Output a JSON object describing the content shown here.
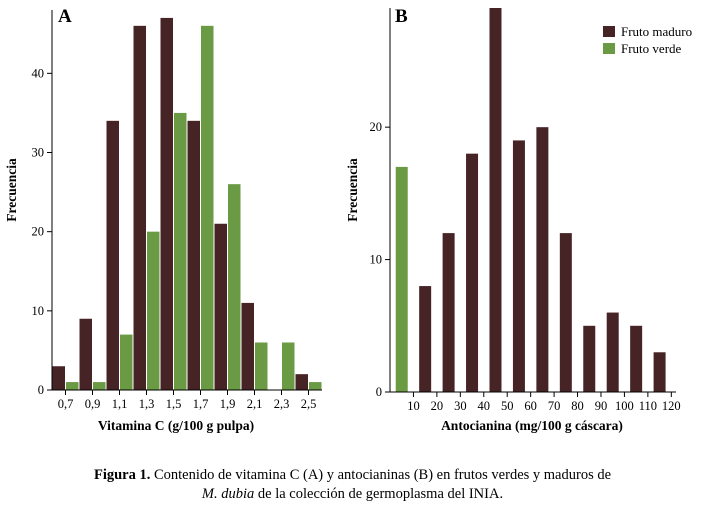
{
  "colors": {
    "mature": "#462426",
    "green": "#6b9a45",
    "axis": "#000000"
  },
  "chart_data": [
    {
      "id": "A",
      "type": "bar",
      "panel_label": "A",
      "title": "",
      "xlabel": "Vitamina C (g/100 g pulpa)",
      "ylabel": "Frecuencia",
      "categories": [
        "0,7",
        "0,9",
        "1,1",
        "1,3",
        "1,5",
        "1,7",
        "1,9",
        "2,1",
        "2,3",
        "2,5"
      ],
      "ylim": [
        0,
        48
      ],
      "yticks": [
        0,
        10,
        20,
        30,
        40
      ],
      "grid": false,
      "series": [
        {
          "name": "Fruto maduro",
          "color": "#462426",
          "values": [
            3,
            9,
            34,
            46,
            47,
            34,
            21,
            11,
            0,
            2
          ]
        },
        {
          "name": "Fruto verde",
          "color": "#6b9a45",
          "values": [
            1,
            1,
            7,
            20,
            35,
            46,
            26,
            6,
            6,
            1
          ]
        }
      ]
    },
    {
      "id": "B",
      "type": "bar",
      "panel_label": "B",
      "title": "",
      "xlabel": "Antocianina (mg/100 g cáscara)",
      "ylabel": "Frecuencia",
      "x": [
        "10",
        "20",
        "30",
        "40",
        "50",
        "60",
        "70",
        "80",
        "90",
        "100",
        "110",
        "120"
      ],
      "categories": [
        "10",
        "20",
        "30",
        "40",
        "50",
        "60",
        "70",
        "80",
        "90",
        "100",
        "110",
        "120"
      ],
      "ylim": [
        0,
        29
      ],
      "yticks": [
        0,
        10,
        20
      ],
      "grid": false,
      "legend_position": "top-right",
      "series": [
        {
          "name": "Fruto maduro",
          "color": "#462426",
          "x": [
            15,
            25,
            35,
            45,
            55,
            65,
            75,
            85,
            95,
            105,
            115
          ],
          "values": [
            8,
            12,
            18,
            29,
            19,
            20,
            12,
            5,
            6,
            5,
            3
          ]
        },
        {
          "name": "Fruto verde",
          "color": "#6b9a45",
          "x": [
            5
          ],
          "values": [
            17
          ]
        }
      ]
    }
  ],
  "legend": [
    {
      "label": "Fruto maduro",
      "color": "#462426"
    },
    {
      "label": "Fruto verde",
      "color": "#6b9a45"
    }
  ],
  "caption": {
    "label": "Figura 1.",
    "line1": " Contenido de vitamina C (A) y antocianinas (B) en frutos verdes y maduros de",
    "species": "M. dubia",
    "line2": " de la colección de germoplasma del INIA."
  }
}
